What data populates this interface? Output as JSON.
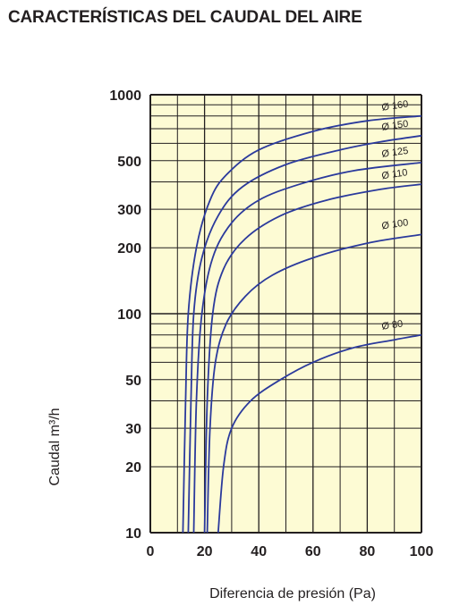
{
  "title": "CARACTERÍSTICAS DEL CAUDAL DEL AIRE",
  "colors": {
    "plot_bg": "#fdfbd4",
    "grid": "#231f20",
    "curve": "#2b3a9c"
  },
  "chart_data": {
    "type": "line",
    "xlabel": "Diferencia de presión (Pa)",
    "ylabel": "Caudal m³/h",
    "xlim": [
      0,
      100
    ],
    "ylim": [
      10,
      1000
    ],
    "yscale": "log",
    "grid": true,
    "x_ticks": [
      "0",
      "20",
      "40",
      "60",
      "80",
      "100"
    ],
    "y_ticks": [
      "10",
      "20",
      "30",
      "50",
      "100",
      "200",
      "300",
      "500",
      "1000"
    ],
    "series": [
      {
        "name": "Ø 160",
        "points": [
          [
            12,
            10
          ],
          [
            13,
            40
          ],
          [
            14,
            100
          ],
          [
            17,
            200
          ],
          [
            22,
            330
          ],
          [
            28,
            430
          ],
          [
            40,
            560
          ],
          [
            60,
            680
          ],
          [
            80,
            760
          ],
          [
            100,
            800
          ]
        ]
      },
      {
        "name": "Ø 150",
        "points": [
          [
            14,
            10
          ],
          [
            15,
            40
          ],
          [
            16,
            100
          ],
          [
            19,
            180
          ],
          [
            25,
            280
          ],
          [
            34,
            380
          ],
          [
            50,
            480
          ],
          [
            70,
            560
          ],
          [
            85,
            610
          ],
          [
            100,
            650
          ]
        ]
      },
      {
        "name": "Ø 125",
        "points": [
          [
            16,
            10
          ],
          [
            17,
            40
          ],
          [
            19,
            100
          ],
          [
            23,
            180
          ],
          [
            30,
            260
          ],
          [
            40,
            330
          ],
          [
            55,
            390
          ],
          [
            75,
            450
          ],
          [
            100,
            490
          ]
        ]
      },
      {
        "name": "Ø 110",
        "points": [
          [
            20,
            10
          ],
          [
            21,
            40
          ],
          [
            23,
            100
          ],
          [
            27,
            160
          ],
          [
            35,
            220
          ],
          [
            48,
            280
          ],
          [
            65,
            330
          ],
          [
            85,
            370
          ],
          [
            100,
            390
          ]
        ]
      },
      {
        "name": "Ø 100",
        "points": [
          [
            21,
            10
          ],
          [
            22,
            30
          ],
          [
            24,
            60
          ],
          [
            28,
            90
          ],
          [
            35,
            120
          ],
          [
            45,
            150
          ],
          [
            60,
            180
          ],
          [
            80,
            210
          ],
          [
            100,
            230
          ]
        ]
      },
      {
        "name": "Ø 80",
        "points": [
          [
            25,
            10
          ],
          [
            27,
            20
          ],
          [
            30,
            30
          ],
          [
            37,
            40
          ],
          [
            48,
            50
          ],
          [
            60,
            60
          ],
          [
            75,
            70
          ],
          [
            90,
            76
          ],
          [
            100,
            80
          ]
        ]
      }
    ]
  }
}
